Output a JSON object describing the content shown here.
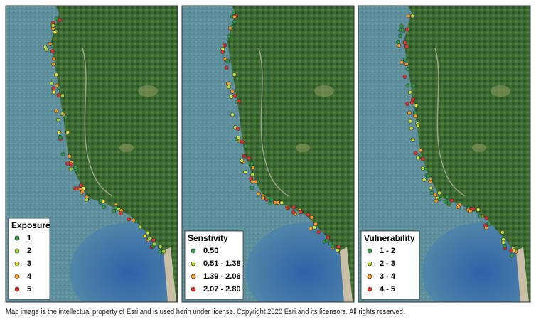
{
  "panels": [
    {
      "legend": {
        "title": "Exposure",
        "items": [
          {
            "label": "1",
            "color": "#2f9a45"
          },
          {
            "label": "2",
            "color": "#a6d23c"
          },
          {
            "label": "3",
            "color": "#f2e63a"
          },
          {
            "label": "4",
            "color": "#f39a2a"
          },
          {
            "label": "5",
            "color": "#e0312b"
          }
        ]
      }
    },
    {
      "legend": {
        "title": "Senstivity",
        "items": [
          {
            "label": "0.50",
            "color": "#2f9a45"
          },
          {
            "label": "0.51 - 1.38",
            "color": "#c8df3a"
          },
          {
            "label": "1.39 - 2.06",
            "color": "#f39a2a"
          },
          {
            "label": "2.07 - 2.80",
            "color": "#e0312b"
          }
        ]
      }
    },
    {
      "legend": {
        "title": "Vulnerability",
        "items": [
          {
            "label": "1 - 2",
            "color": "#2f9a45"
          },
          {
            "label": "2 - 3",
            "color": "#c8df3a"
          },
          {
            "label": "3 - 4",
            "color": "#f39a2a"
          },
          {
            "label": "4 - 5",
            "color": "#e0312b"
          }
        ]
      }
    }
  ],
  "caption": "Map image is the intellectual property of Esri and is used herin under license. Copyright 2020 Esri and its licensors. All rights reserved."
}
